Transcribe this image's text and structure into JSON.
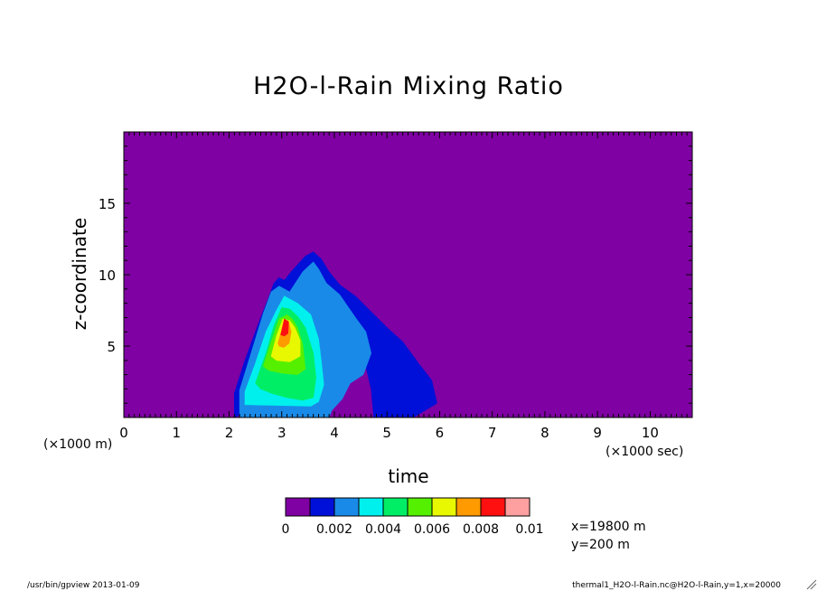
{
  "chart_data": {
    "type": "heatmap",
    "title": "H2O-l-Rain Mixing Ratio",
    "xlabel": "time",
    "ylabel": "z-coordinate",
    "x_unit_note": "(×1000 sec)",
    "y_unit_note": "(×1000 m)",
    "xlim": [
      0,
      10.8
    ],
    "ylim": [
      0,
      20
    ],
    "x_ticks": [
      0,
      1,
      2,
      3,
      4,
      5,
      6,
      7,
      8,
      9,
      10
    ],
    "y_ticks": [
      5,
      10,
      15
    ],
    "colorbar": {
      "levels": [
        0,
        0.001,
        0.002,
        0.003,
        0.004,
        0.005,
        0.006,
        0.007,
        0.008,
        0.009,
        0.01
      ],
      "labels": [
        "0",
        "0.002",
        "0.004",
        "0.006",
        "0.008",
        "0.01"
      ],
      "colors": [
        "#7f00a3",
        "#0010d8",
        "#1a8ae8",
        "#00f0ee",
        "#00ee66",
        "#55f000",
        "#e8f800",
        "#ff9a00",
        "#ff1010",
        "#ffa0a0"
      ]
    },
    "regions": [
      {
        "level": 1,
        "x": [
          2.1,
          2.3,
          2.55,
          2.75,
          2.85,
          2.95,
          3.05,
          3.2,
          3.45,
          3.6,
          3.75,
          3.9,
          4.1,
          4.4,
          4.7,
          5.0,
          5.3,
          5.6,
          5.85,
          5.95,
          5.5,
          5.0,
          4.75,
          4.7,
          4.55,
          4.35,
          4.2,
          2.1
        ],
        "y": [
          1.7,
          4.0,
          6.5,
          8.4,
          9.4,
          9.8,
          9.6,
          10.3,
          11.3,
          11.6,
          11.1,
          10.2,
          9.3,
          8.5,
          7.4,
          6.3,
          5.3,
          3.8,
          2.6,
          1.0,
          0.0,
          0.0,
          0.0,
          2.0,
          4.3,
          4.2,
          3.8,
          0.0
        ]
      },
      {
        "level": 2,
        "x": [
          2.2,
          2.4,
          2.65,
          2.8,
          2.95,
          3.15,
          3.4,
          3.6,
          3.7,
          3.85,
          4.1,
          4.4,
          4.6,
          4.7,
          4.55,
          4.3,
          4.15,
          3.95,
          3.9,
          2.2
        ],
        "y": [
          1.9,
          4.3,
          7.3,
          8.8,
          9.2,
          8.8,
          10.2,
          10.9,
          10.4,
          9.4,
          8.6,
          7.0,
          6.0,
          4.5,
          3.0,
          2.4,
          1.3,
          0.5,
          0.0,
          0.0
        ]
      },
      {
        "level": 3,
        "x": [
          2.3,
          2.5,
          2.7,
          2.9,
          3.05,
          3.3,
          3.55,
          3.7,
          3.75,
          3.8,
          3.7,
          3.55,
          2.3
        ],
        "y": [
          1.8,
          3.8,
          6.0,
          7.5,
          8.5,
          8.0,
          7.2,
          5.5,
          4.0,
          2.3,
          1.1,
          0.8,
          0.9
        ]
      },
      {
        "level": 4,
        "x": [
          2.5,
          2.7,
          2.85,
          3.0,
          3.15,
          3.3,
          3.45,
          3.6,
          3.65,
          3.6,
          3.4,
          3.1,
          2.8,
          2.6
        ],
        "y": [
          2.4,
          4.5,
          6.4,
          7.7,
          7.6,
          7.1,
          6.3,
          4.5,
          2.8,
          1.4,
          1.2,
          1.4,
          1.7,
          2.0
        ]
      },
      {
        "level": 5,
        "x": [
          2.65,
          2.8,
          2.95,
          3.1,
          3.2,
          3.3,
          3.4,
          3.45,
          3.3,
          3.0,
          2.75
        ],
        "y": [
          3.6,
          5.3,
          6.9,
          7.2,
          6.9,
          6.3,
          5.1,
          3.4,
          3.0,
          3.1,
          3.3
        ]
      },
      {
        "level": 6,
        "x": [
          2.8,
          2.9,
          3.02,
          3.15,
          3.25,
          3.35,
          3.35,
          3.15,
          2.9
        ],
        "y": [
          4.3,
          5.7,
          6.9,
          6.8,
          6.3,
          5.4,
          4.3,
          3.9,
          4.0
        ]
      },
      {
        "level": 7,
        "x": [
          2.93,
          3.03,
          3.12,
          3.18,
          3.14,
          3.04,
          2.95
        ],
        "y": [
          5.2,
          6.5,
          6.8,
          6.0,
          5.2,
          4.9,
          5.0
        ]
      },
      {
        "level": 8,
        "x": [
          2.98,
          3.05,
          3.13,
          3.12,
          3.05
        ],
        "y": [
          5.8,
          6.9,
          6.7,
          5.9,
          5.7
        ]
      }
    ]
  },
  "info": {
    "x_coord": "x=19800 m",
    "y_coord": "y=200 m"
  },
  "footer": {
    "left": "/usr/bin/gpview  2013-01-09",
    "right": "thermal1_H2O-l-Rain.nc@H2O-l-Rain,y=1,x=20000"
  }
}
